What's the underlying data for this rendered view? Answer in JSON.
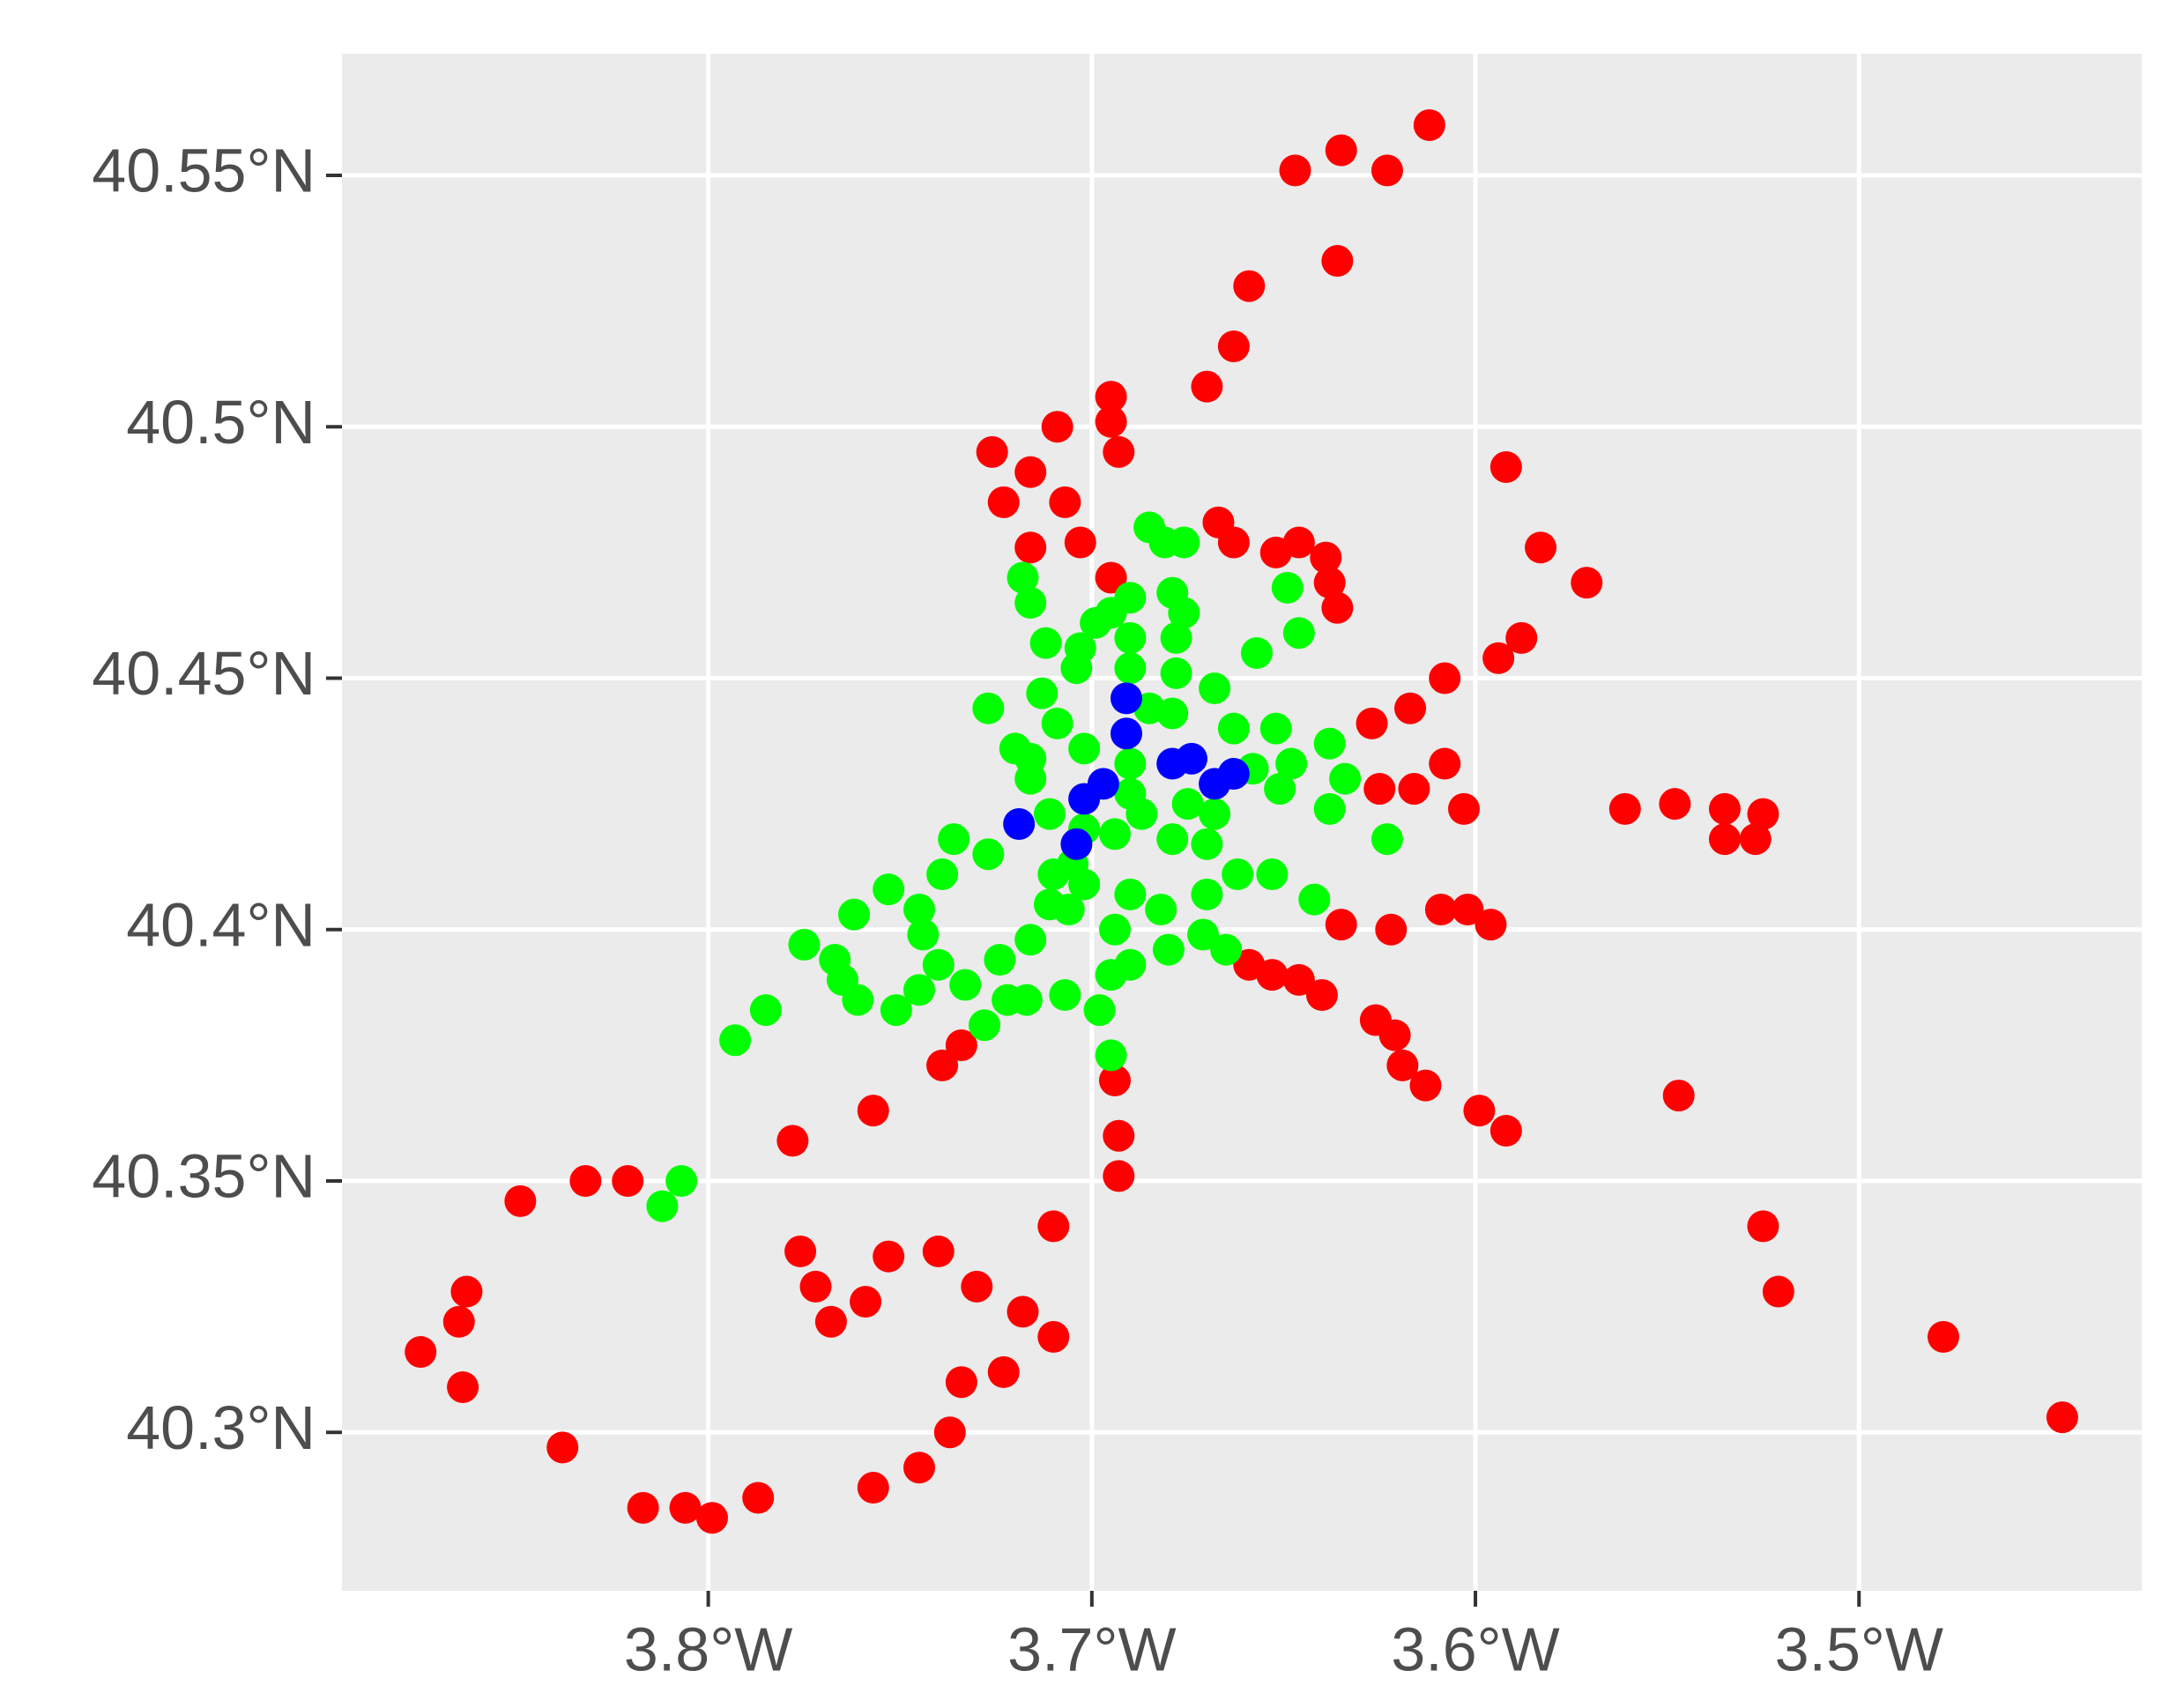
{
  "chart_data": {
    "type": "scatter",
    "grid": true,
    "panel_color": "#ebebeb",
    "xlim": [
      -3.8955,
      -3.4263
    ],
    "ylim": [
      40.2685,
      40.5742
    ],
    "xticks": [
      {
        "value": -3.8,
        "label": "3.8°W"
      },
      {
        "value": -3.7,
        "label": "3.7°W"
      },
      {
        "value": -3.6,
        "label": "3.6°W"
      },
      {
        "value": -3.5,
        "label": "3.5°W"
      }
    ],
    "yticks": [
      {
        "value": 40.3,
        "label": "40.3°N"
      },
      {
        "value": 40.35,
        "label": "40.35°N"
      },
      {
        "value": 40.4,
        "label": "40.4°N"
      },
      {
        "value": 40.45,
        "label": "40.45°N"
      },
      {
        "value": 40.5,
        "label": "40.5°N"
      },
      {
        "value": 40.55,
        "label": "40.55°N"
      }
    ],
    "series": [
      {
        "color": "#ff0000",
        "x": [
          -3.612,
          -3.647,
          -3.635,
          -3.623,
          -3.636,
          -3.659,
          -3.663,
          -3.67,
          -3.695,
          -3.695,
          -3.693,
          -3.709,
          -3.726,
          -3.716,
          -3.723,
          -3.707,
          -3.716,
          -3.703,
          -3.695,
          -3.667,
          -3.663,
          -3.652,
          -3.646,
          -3.639,
          -3.638,
          -3.636,
          -3.592,
          -3.583,
          -3.571,
          -3.588,
          -3.594,
          -3.608,
          -3.617,
          -3.627,
          -3.608,
          -3.625,
          -3.616,
          -3.603,
          -3.561,
          -3.548,
          -3.535,
          -3.525,
          -3.535,
          -3.527,
          -3.635,
          -3.622,
          -3.609,
          -3.602,
          -3.596,
          -3.659,
          -3.653,
          -3.646,
          -3.64,
          -3.626,
          -3.621,
          -3.619,
          -3.613,
          -3.599,
          -3.592,
          -3.547,
          -3.525,
          -3.521,
          -3.478,
          -3.447,
          -3.694,
          -3.693,
          -3.693,
          -3.71,
          -3.734,
          -3.739,
          -3.757,
          -3.778,
          -3.776,
          -3.772,
          -3.768,
          -3.759,
          -3.753,
          -3.74,
          -3.73,
          -3.718,
          -3.71,
          -3.723,
          -3.734,
          -3.737,
          -3.745,
          -3.757,
          -3.787,
          -3.799,
          -3.806,
          -3.817,
          -3.838,
          -3.821,
          -3.832,
          -3.849,
          -3.863,
          -3.865,
          -3.875,
          -3.864
        ],
        "values": [
          40.56,
          40.551,
          40.555,
          40.551,
          40.533,
          40.528,
          40.516,
          40.508,
          40.506,
          40.501,
          40.495,
          40.5,
          40.495,
          40.491,
          40.485,
          40.485,
          40.476,
          40.477,
          40.47,
          40.481,
          40.477,
          40.475,
          40.477,
          40.474,
          40.469,
          40.464,
          40.492,
          40.476,
          40.469,
          40.458,
          40.454,
          40.45,
          40.444,
          40.441,
          40.433,
          40.428,
          40.428,
          40.424,
          40.424,
          40.425,
          40.424,
          40.423,
          40.418,
          40.418,
          40.401,
          40.4,
          40.404,
          40.404,
          40.401,
          40.393,
          40.391,
          40.39,
          40.387,
          40.382,
          40.379,
          40.373,
          40.369,
          40.364,
          40.36,
          40.367,
          40.341,
          40.328,
          40.319,
          40.303,
          40.37,
          40.359,
          40.351,
          40.341,
          40.377,
          40.373,
          40.364,
          40.358,
          40.336,
          40.329,
          40.322,
          40.326,
          40.335,
          40.336,
          40.329,
          40.324,
          40.319,
          40.312,
          40.31,
          40.3,
          40.293,
          40.289,
          40.287,
          40.283,
          40.285,
          40.285,
          40.297,
          40.35,
          40.35,
          40.346,
          40.328,
          40.322,
          40.316,
          40.309
        ]
      },
      {
        "color": "#00ff00",
        "x": [
          -3.807,
          -3.812,
          -3.793,
          -3.785,
          -3.775,
          -3.767,
          -3.765,
          -3.761,
          -3.762,
          -3.753,
          -3.745,
          -3.744,
          -3.751,
          -3.745,
          -3.74,
          -3.733,
          -3.739,
          -3.736,
          -3.727,
          -3.728,
          -3.724,
          -3.722,
          -3.717,
          -3.716,
          -3.711,
          -3.707,
          -3.698,
          -3.695,
          -3.695,
          -3.69,
          -3.694,
          -3.69,
          -3.682,
          -3.68,
          -3.671,
          -3.665,
          -3.67,
          -3.662,
          -3.653,
          -3.642,
          -3.705,
          -3.71,
          -3.702,
          -3.706,
          -3.702,
          -3.694,
          -3.687,
          -3.679,
          -3.67,
          -3.668,
          -3.69,
          -3.675,
          -3.658,
          -3.651,
          -3.648,
          -3.638,
          -3.634,
          -3.638,
          -3.623,
          -3.652,
          -3.663,
          -3.668,
          -3.679,
          -3.685,
          -3.69,
          -3.702,
          -3.709,
          -3.713,
          -3.704,
          -3.703,
          -3.712,
          -3.716,
          -3.72,
          -3.716,
          -3.711,
          -3.727,
          -3.716,
          -3.718,
          -3.699,
          -3.695,
          -3.69,
          -3.69,
          -3.69,
          -3.685,
          -3.681,
          -3.676,
          -3.679,
          -3.676,
          -3.678,
          -3.678,
          -3.657,
          -3.649,
          -3.646
        ],
        "values": [
          40.35,
          40.345,
          40.378,
          40.384,
          40.397,
          40.394,
          40.39,
          40.386,
          40.403,
          40.408,
          40.404,
          40.399,
          40.384,
          40.388,
          40.393,
          40.389,
          40.411,
          40.418,
          40.415,
          40.381,
          40.394,
          40.386,
          40.386,
          40.398,
          40.405,
          40.387,
          40.384,
          40.375,
          40.391,
          40.393,
          40.4,
          40.407,
          40.404,
          40.396,
          40.399,
          40.396,
          40.407,
          40.411,
          40.411,
          40.406,
          40.413,
          40.411,
          40.409,
          40.404,
          40.42,
          40.419,
          40.423,
          40.418,
          40.417,
          40.423,
          40.427,
          40.425,
          40.432,
          40.428,
          40.433,
          40.437,
          40.43,
          40.424,
          40.418,
          40.44,
          40.44,
          40.448,
          40.443,
          40.444,
          40.433,
          40.436,
          40.441,
          40.447,
          40.452,
          40.456,
          40.457,
          40.434,
          40.436,
          40.43,
          40.423,
          40.444,
          40.465,
          40.47,
          40.461,
          40.463,
          40.452,
          40.458,
          40.466,
          40.48,
          40.477,
          40.477,
          40.467,
          40.463,
          40.458,
          40.451,
          40.455,
          40.468,
          40.459
        ]
      },
      {
        "color": "#0000ff",
        "x": [
          -3.719,
          -3.704,
          -3.702,
          -3.697,
          -3.691,
          -3.691,
          -3.679,
          -3.674,
          -3.668,
          -3.663
        ],
        "values": [
          40.421,
          40.417,
          40.426,
          40.429,
          40.439,
          40.446,
          40.433,
          40.434,
          40.429,
          40.431
        ]
      }
    ]
  }
}
